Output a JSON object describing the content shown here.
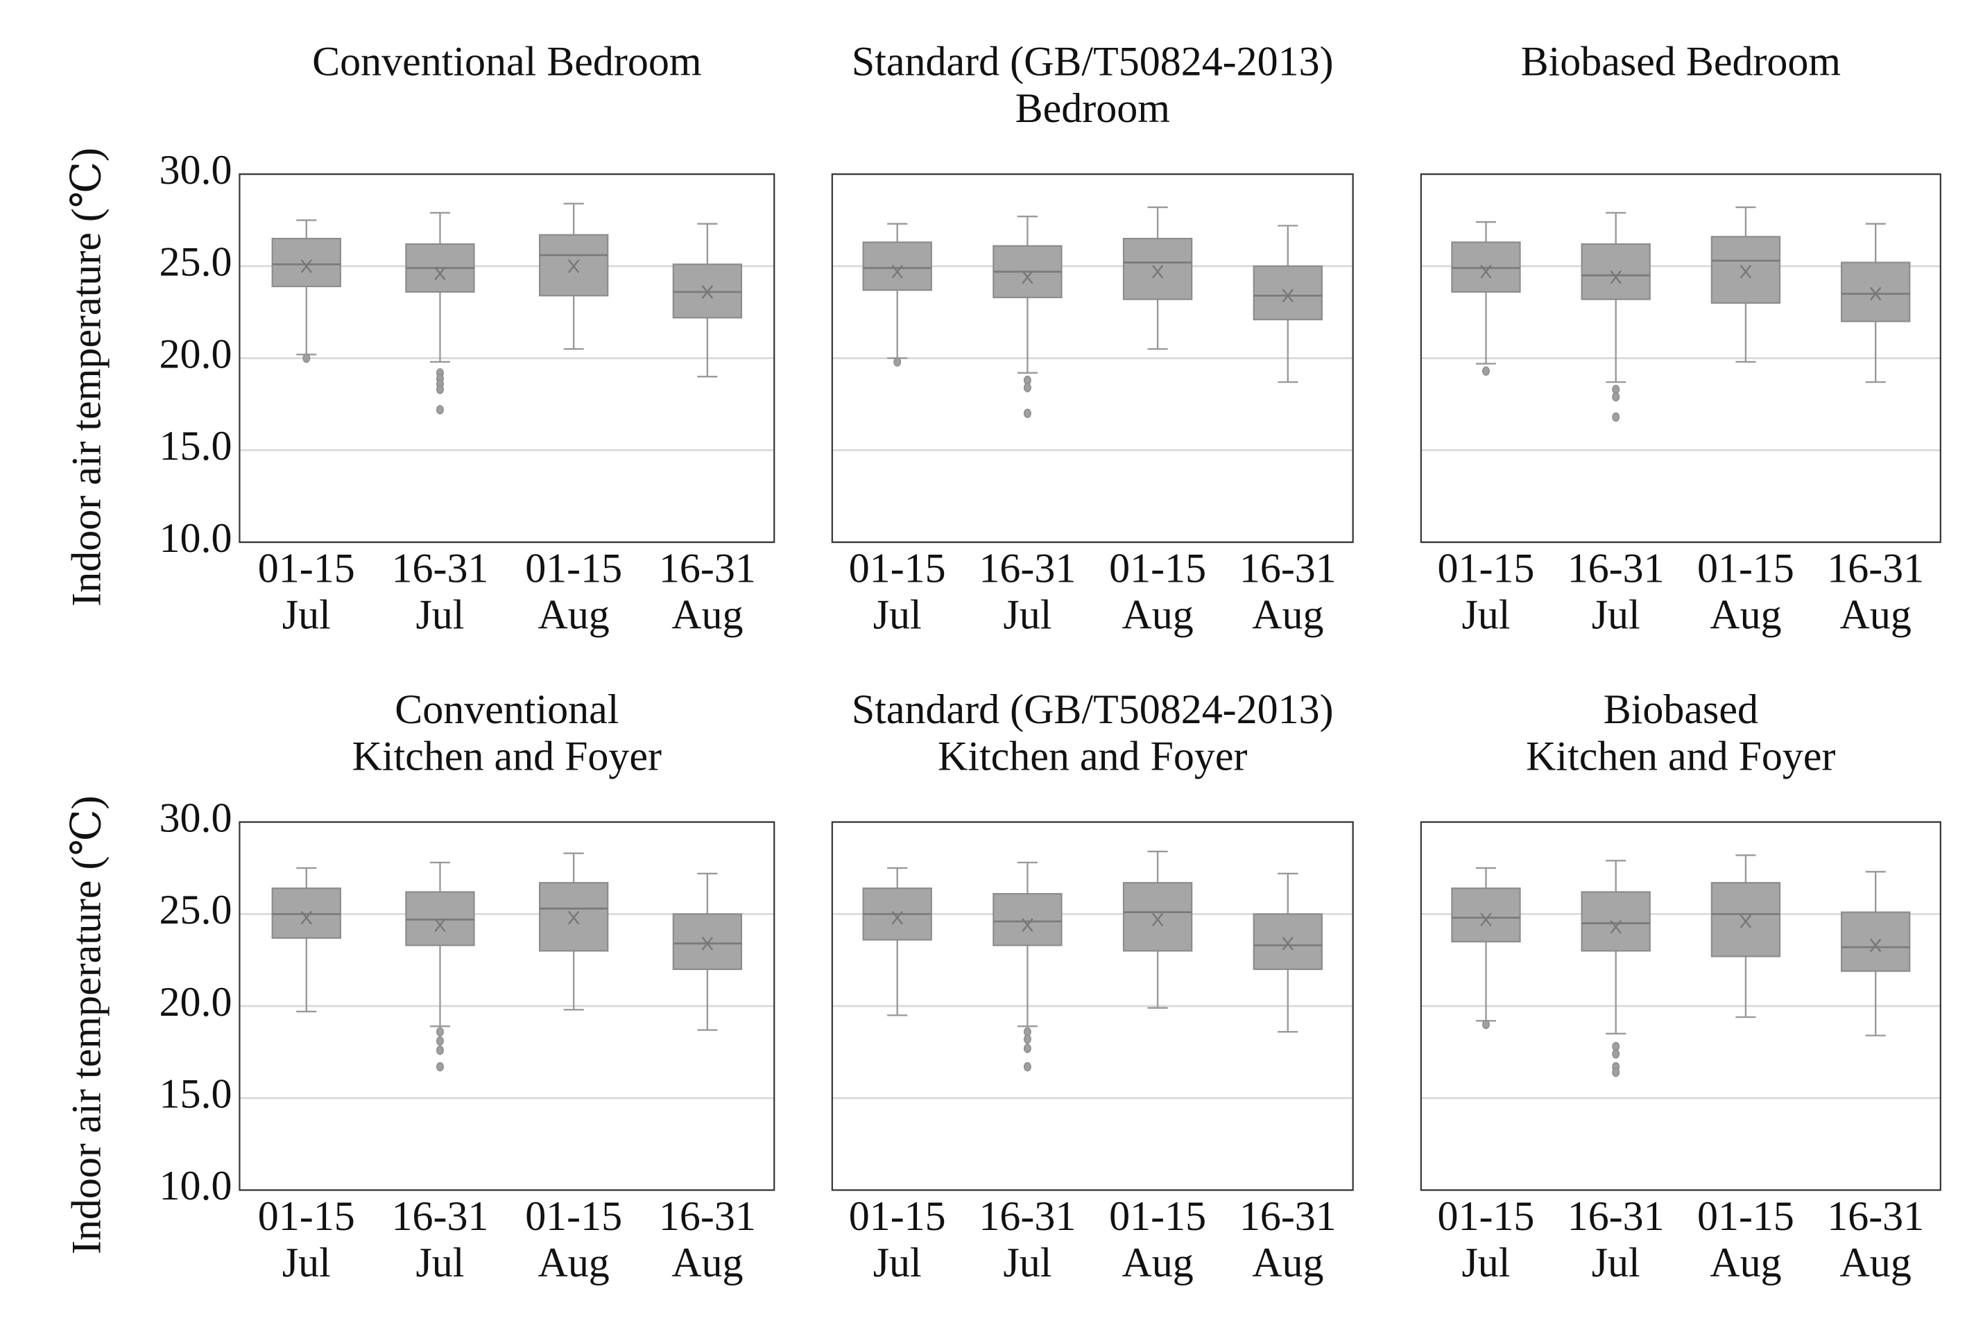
{
  "chart_data": [
    {
      "type": "box",
      "title": [
        "Conventional Bedroom"
      ],
      "ylabel": "Indoor air temperature (℃)",
      "categories": [
        [
          "01-15",
          "Jul"
        ],
        [
          "16-31",
          "Jul"
        ],
        [
          "01-15",
          "Aug"
        ],
        [
          "16-31",
          "Aug"
        ]
      ],
      "ylim": [
        10,
        30
      ],
      "yticks": [
        {
          "value": 10,
          "label": "10.0"
        },
        {
          "value": 15,
          "label": "15.0"
        },
        {
          "value": 20,
          "label": "20.0"
        },
        {
          "value": 25,
          "label": "25.0"
        },
        {
          "value": 30,
          "label": "30.0"
        }
      ],
      "grid": true,
      "color": "#a6a6a6",
      "boxes": [
        {
          "min": 20.2,
          "q1": 23.9,
          "median": 25.1,
          "q3": 26.5,
          "max": 27.5,
          "mean": 25.0,
          "outliers": [
            20.0
          ]
        },
        {
          "min": 19.8,
          "q1": 23.6,
          "median": 24.9,
          "q3": 26.2,
          "max": 27.9,
          "mean": 24.6,
          "outliers": [
            19.2,
            18.9,
            18.6,
            18.3,
            17.2
          ]
        },
        {
          "min": 20.5,
          "q1": 23.4,
          "median": 25.6,
          "q3": 26.7,
          "max": 28.4,
          "mean": 25.0,
          "outliers": []
        },
        {
          "min": 19.0,
          "q1": 22.2,
          "median": 23.6,
          "q3": 25.1,
          "max": 27.3,
          "mean": 23.6,
          "outliers": []
        }
      ]
    },
    {
      "type": "box",
      "title": [
        "Standard (GB/T50824-2013)",
        "Bedroom"
      ],
      "categories": [
        [
          "01-15",
          "Jul"
        ],
        [
          "16-31",
          "Jul"
        ],
        [
          "01-15",
          "Aug"
        ],
        [
          "16-31",
          "Aug"
        ]
      ],
      "ylim": [
        10,
        30
      ],
      "yticks": [
        10,
        15,
        20,
        25,
        30
      ],
      "grid": true,
      "color": "#a6a6a6",
      "boxes": [
        {
          "min": 20.0,
          "q1": 23.7,
          "median": 24.9,
          "q3": 26.3,
          "max": 27.3,
          "mean": 24.7,
          "outliers": [
            19.8
          ]
        },
        {
          "min": 19.2,
          "q1": 23.3,
          "median": 24.7,
          "q3": 26.1,
          "max": 27.7,
          "mean": 24.4,
          "outliers": [
            18.8,
            18.4,
            17.0
          ]
        },
        {
          "min": 20.5,
          "q1": 23.2,
          "median": 25.2,
          "q3": 26.5,
          "max": 28.2,
          "mean": 24.7,
          "outliers": []
        },
        {
          "min": 18.7,
          "q1": 22.1,
          "median": 23.4,
          "q3": 25.0,
          "max": 27.2,
          "mean": 23.4,
          "outliers": []
        }
      ]
    },
    {
      "type": "box",
      "title": [
        "Biobased Bedroom"
      ],
      "categories": [
        [
          "01-15",
          "Jul"
        ],
        [
          "16-31",
          "Jul"
        ],
        [
          "01-15",
          "Aug"
        ],
        [
          "16-31",
          "Aug"
        ]
      ],
      "ylim": [
        10,
        30
      ],
      "yticks": [
        10,
        15,
        20,
        25,
        30
      ],
      "grid": true,
      "color": "#a6a6a6",
      "boxes": [
        {
          "min": 19.7,
          "q1": 23.6,
          "median": 24.9,
          "q3": 26.3,
          "max": 27.4,
          "mean": 24.7,
          "outliers": [
            19.3
          ]
        },
        {
          "min": 18.7,
          "q1": 23.2,
          "median": 24.5,
          "q3": 26.2,
          "max": 27.9,
          "mean": 24.4,
          "outliers": [
            18.3,
            17.9,
            16.8
          ]
        },
        {
          "min": 19.8,
          "q1": 23.0,
          "median": 25.3,
          "q3": 26.6,
          "max": 28.2,
          "mean": 24.7,
          "outliers": []
        },
        {
          "min": 18.7,
          "q1": 22.0,
          "median": 23.5,
          "q3": 25.2,
          "max": 27.3,
          "mean": 23.5,
          "outliers": []
        }
      ]
    },
    {
      "type": "box",
      "title": [
        "Conventional",
        "Kitchen and Foyer"
      ],
      "ylabel": "Indoor air temperature (℃)",
      "categories": [
        [
          "01-15",
          "Jul"
        ],
        [
          "16-31",
          "Jul"
        ],
        [
          "01-15",
          "Aug"
        ],
        [
          "16-31",
          "Aug"
        ]
      ],
      "ylim": [
        10,
        30
      ],
      "yticks": [
        {
          "value": 10,
          "label": "10.0"
        },
        {
          "value": 15,
          "label": "15.0"
        },
        {
          "value": 20,
          "label": "20.0"
        },
        {
          "value": 25,
          "label": "25.0"
        },
        {
          "value": 30,
          "label": "30.0"
        }
      ],
      "grid": true,
      "color": "#a6a6a6",
      "boxes": [
        {
          "min": 19.7,
          "q1": 23.7,
          "median": 25.0,
          "q3": 26.4,
          "max": 27.5,
          "mean": 24.8,
          "outliers": []
        },
        {
          "min": 18.9,
          "q1": 23.3,
          "median": 24.7,
          "q3": 26.2,
          "max": 27.8,
          "mean": 24.4,
          "outliers": [
            18.6,
            18.1,
            17.6,
            16.7
          ]
        },
        {
          "min": 19.8,
          "q1": 23.0,
          "median": 25.3,
          "q3": 26.7,
          "max": 28.3,
          "mean": 24.8,
          "outliers": []
        },
        {
          "min": 18.7,
          "q1": 22.0,
          "median": 23.4,
          "q3": 25.0,
          "max": 27.2,
          "mean": 23.4,
          "outliers": []
        }
      ]
    },
    {
      "type": "box",
      "title": [
        "Standard (GB/T50824-2013)",
        "Kitchen and Foyer"
      ],
      "categories": [
        [
          "01-15",
          "Jul"
        ],
        [
          "16-31",
          "Jul"
        ],
        [
          "01-15",
          "Aug"
        ],
        [
          "16-31",
          "Aug"
        ]
      ],
      "ylim": [
        10,
        30
      ],
      "yticks": [
        10,
        15,
        20,
        25,
        30
      ],
      "grid": true,
      "color": "#a6a6a6",
      "boxes": [
        {
          "min": 19.5,
          "q1": 23.6,
          "median": 25.0,
          "q3": 26.4,
          "max": 27.5,
          "mean": 24.8,
          "outliers": []
        },
        {
          "min": 18.9,
          "q1": 23.3,
          "median": 24.6,
          "q3": 26.1,
          "max": 27.8,
          "mean": 24.4,
          "outliers": [
            18.6,
            18.2,
            17.7,
            16.7
          ]
        },
        {
          "min": 19.9,
          "q1": 23.0,
          "median": 25.1,
          "q3": 26.7,
          "max": 28.4,
          "mean": 24.7,
          "outliers": []
        },
        {
          "min": 18.6,
          "q1": 22.0,
          "median": 23.3,
          "q3": 25.0,
          "max": 27.2,
          "mean": 23.4,
          "outliers": []
        }
      ]
    },
    {
      "type": "box",
      "title": [
        "Biobased",
        "Kitchen and Foyer"
      ],
      "categories": [
        [
          "01-15",
          "Jul"
        ],
        [
          "16-31",
          "Jul"
        ],
        [
          "01-15",
          "Aug"
        ],
        [
          "16-31",
          "Aug"
        ]
      ],
      "ylim": [
        10,
        30
      ],
      "yticks": [
        10,
        15,
        20,
        25,
        30
      ],
      "grid": true,
      "color": "#a6a6a6",
      "boxes": [
        {
          "min": 19.2,
          "q1": 23.5,
          "median": 24.8,
          "q3": 26.4,
          "max": 27.5,
          "mean": 24.7,
          "outliers": [
            19.0
          ]
        },
        {
          "min": 18.5,
          "q1": 23.0,
          "median": 24.5,
          "q3": 26.2,
          "max": 27.9,
          "mean": 24.3,
          "outliers": [
            17.8,
            17.4,
            16.7,
            16.4
          ]
        },
        {
          "min": 19.4,
          "q1": 22.7,
          "median": 25.0,
          "q3": 26.7,
          "max": 28.2,
          "mean": 24.6,
          "outliers": []
        },
        {
          "min": 18.4,
          "q1": 21.9,
          "median": 23.2,
          "q3": 25.1,
          "max": 27.3,
          "mean": 23.3,
          "outliers": []
        }
      ]
    }
  ]
}
